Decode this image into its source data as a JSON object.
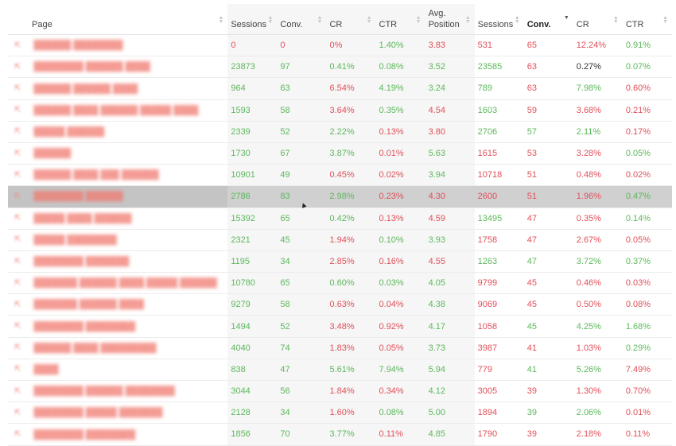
{
  "headers": {
    "page": "Page",
    "sessions_a": "Sessions",
    "conv_a": "Conv.",
    "cr_a": "CR",
    "ctr_a": "CTR",
    "avg_position": "Avg.\nPosition",
    "sessions_b": "Sessions",
    "conv_b": "Conv.",
    "cr_b": "CR",
    "ctr_b": "CTR"
  },
  "icons": {
    "page_icon": "external-link-icon",
    "sort_icon": "sort-arrows-icon",
    "cursor": "mouse-pointer-icon"
  },
  "colors": {
    "positive": "#5cb85c",
    "negative": "#e0505a",
    "link": "#f07a70",
    "highlight_row": "#d0d0d0"
  },
  "rows": [
    {
      "page": "██████ ████████",
      "highlight": false,
      "cells": [
        [
          "0",
          "red"
        ],
        [
          "0",
          "red"
        ],
        [
          "0%",
          "red"
        ],
        [
          "1.40%",
          "green"
        ],
        [
          "3.83",
          "red"
        ],
        [
          "531",
          "red"
        ],
        [
          "65",
          "red"
        ],
        [
          "12.24%",
          "red"
        ],
        [
          "0.91%",
          "green"
        ]
      ]
    },
    {
      "page": "████████ ██████ ████",
      "highlight": false,
      "cells": [
        [
          "23873",
          "green"
        ],
        [
          "97",
          "green"
        ],
        [
          "0.41%",
          "green"
        ],
        [
          "0.08%",
          "green"
        ],
        [
          "3.52",
          "green"
        ],
        [
          "23585",
          "green"
        ],
        [
          "63",
          "red"
        ],
        [
          "0.27%",
          "dark"
        ],
        [
          "0.07%",
          "green"
        ]
      ]
    },
    {
      "page": "██████ ██████ ████",
      "highlight": false,
      "cells": [
        [
          "964",
          "green"
        ],
        [
          "63",
          "green"
        ],
        [
          "6.54%",
          "red"
        ],
        [
          "4.19%",
          "green"
        ],
        [
          "3.24",
          "green"
        ],
        [
          "789",
          "green"
        ],
        [
          "63",
          "red"
        ],
        [
          "7.98%",
          "green"
        ],
        [
          "0.60%",
          "red"
        ]
      ]
    },
    {
      "page": "██████ ████ ██████ █████ ████",
      "highlight": false,
      "cells": [
        [
          "1593",
          "green"
        ],
        [
          "58",
          "green"
        ],
        [
          "3.64%",
          "red"
        ],
        [
          "0.35%",
          "green"
        ],
        [
          "4.54",
          "red"
        ],
        [
          "1603",
          "green"
        ],
        [
          "59",
          "red"
        ],
        [
          "3.68%",
          "red"
        ],
        [
          "0.21%",
          "red"
        ]
      ]
    },
    {
      "page": "█████ ██████",
      "highlight": false,
      "cells": [
        [
          "2339",
          "green"
        ],
        [
          "52",
          "green"
        ],
        [
          "2.22%",
          "green"
        ],
        [
          "0.13%",
          "red"
        ],
        [
          "3.80",
          "red"
        ],
        [
          "2706",
          "green"
        ],
        [
          "57",
          "green"
        ],
        [
          "2.11%",
          "green"
        ],
        [
          "0.17%",
          "red"
        ]
      ]
    },
    {
      "page": "██████",
      "highlight": false,
      "cells": [
        [
          "1730",
          "green"
        ],
        [
          "67",
          "green"
        ],
        [
          "3.87%",
          "green"
        ],
        [
          "0.01%",
          "red"
        ],
        [
          "5.63",
          "green"
        ],
        [
          "1615",
          "red"
        ],
        [
          "53",
          "red"
        ],
        [
          "3.28%",
          "red"
        ],
        [
          "0.05%",
          "green"
        ]
      ]
    },
    {
      "page": "██████ ████ ███ ██████",
      "highlight": false,
      "cells": [
        [
          "10901",
          "green"
        ],
        [
          "49",
          "green"
        ],
        [
          "0.45%",
          "red"
        ],
        [
          "0.02%",
          "red"
        ],
        [
          "3.94",
          "green"
        ],
        [
          "10718",
          "red"
        ],
        [
          "51",
          "red"
        ],
        [
          "0.48%",
          "red"
        ],
        [
          "0.02%",
          "red"
        ]
      ]
    },
    {
      "page": "████████ ██████",
      "highlight": true,
      "cells": [
        [
          "2786",
          "green"
        ],
        [
          "83",
          "green"
        ],
        [
          "2.98%",
          "green"
        ],
        [
          "0.23%",
          "red"
        ],
        [
          "4.30",
          "red"
        ],
        [
          "2600",
          "red"
        ],
        [
          "51",
          "red"
        ],
        [
          "1.96%",
          "red"
        ],
        [
          "0.47%",
          "green"
        ]
      ]
    },
    {
      "page": "█████ ████ ██████",
      "highlight": false,
      "cells": [
        [
          "15392",
          "green"
        ],
        [
          "65",
          "green"
        ],
        [
          "0.42%",
          "green"
        ],
        [
          "0.13%",
          "red"
        ],
        [
          "4.59",
          "red"
        ],
        [
          "13495",
          "green"
        ],
        [
          "47",
          "red"
        ],
        [
          "0.35%",
          "red"
        ],
        [
          "0.14%",
          "green"
        ]
      ]
    },
    {
      "page": "█████ ████████",
      "highlight": false,
      "cells": [
        [
          "2321",
          "green"
        ],
        [
          "45",
          "green"
        ],
        [
          "1.94%",
          "red"
        ],
        [
          "0.10%",
          "green"
        ],
        [
          "3.93",
          "green"
        ],
        [
          "1758",
          "red"
        ],
        [
          "47",
          "red"
        ],
        [
          "2.67%",
          "red"
        ],
        [
          "0.05%",
          "red"
        ]
      ]
    },
    {
      "page": "████████ ███████",
      "highlight": false,
      "cells": [
        [
          "1195",
          "green"
        ],
        [
          "34",
          "green"
        ],
        [
          "2.85%",
          "red"
        ],
        [
          "0.16%",
          "red"
        ],
        [
          "4.55",
          "red"
        ],
        [
          "1263",
          "green"
        ],
        [
          "47",
          "green"
        ],
        [
          "3.72%",
          "green"
        ],
        [
          "0.37%",
          "green"
        ]
      ]
    },
    {
      "page": "███████ ██████ ████ █████ ██████",
      "highlight": false,
      "cells": [
        [
          "10780",
          "green"
        ],
        [
          "65",
          "green"
        ],
        [
          "0.60%",
          "green"
        ],
        [
          "0.03%",
          "green"
        ],
        [
          "4.05",
          "green"
        ],
        [
          "9799",
          "red"
        ],
        [
          "45",
          "red"
        ],
        [
          "0.46%",
          "red"
        ],
        [
          "0.03%",
          "red"
        ]
      ]
    },
    {
      "page": "███████ ██████ ████",
      "highlight": false,
      "cells": [
        [
          "9279",
          "green"
        ],
        [
          "58",
          "green"
        ],
        [
          "0.63%",
          "red"
        ],
        [
          "0.04%",
          "red"
        ],
        [
          "4.38",
          "green"
        ],
        [
          "9069",
          "red"
        ],
        [
          "45",
          "red"
        ],
        [
          "0.50%",
          "red"
        ],
        [
          "0.08%",
          "red"
        ]
      ]
    },
    {
      "page": "████████ ████████",
      "highlight": false,
      "cells": [
        [
          "1494",
          "green"
        ],
        [
          "52",
          "green"
        ],
        [
          "3.48%",
          "red"
        ],
        [
          "0.92%",
          "red"
        ],
        [
          "4.17",
          "green"
        ],
        [
          "1058",
          "red"
        ],
        [
          "45",
          "green"
        ],
        [
          "4.25%",
          "green"
        ],
        [
          "1.68%",
          "green"
        ]
      ]
    },
    {
      "page": "██████ ████ █████████",
      "highlight": false,
      "cells": [
        [
          "4040",
          "green"
        ],
        [
          "74",
          "green"
        ],
        [
          "1.83%",
          "red"
        ],
        [
          "0.05%",
          "red"
        ],
        [
          "3.73",
          "green"
        ],
        [
          "3987",
          "red"
        ],
        [
          "41",
          "red"
        ],
        [
          "1.03%",
          "red"
        ],
        [
          "0.29%",
          "green"
        ]
      ]
    },
    {
      "page": "████",
      "highlight": false,
      "cells": [
        [
          "838",
          "green"
        ],
        [
          "47",
          "green"
        ],
        [
          "5.61%",
          "green"
        ],
        [
          "7.94%",
          "green"
        ],
        [
          "5.94",
          "green"
        ],
        [
          "779",
          "red"
        ],
        [
          "41",
          "green"
        ],
        [
          "5.26%",
          "green"
        ],
        [
          "7.49%",
          "red"
        ]
      ]
    },
    {
      "page": "████████ ██████ ████████",
      "highlight": false,
      "cells": [
        [
          "3044",
          "green"
        ],
        [
          "56",
          "green"
        ],
        [
          "1.84%",
          "red"
        ],
        [
          "0.34%",
          "red"
        ],
        [
          "4.12",
          "green"
        ],
        [
          "3005",
          "red"
        ],
        [
          "39",
          "red"
        ],
        [
          "1.30%",
          "red"
        ],
        [
          "0.70%",
          "red"
        ]
      ]
    },
    {
      "page": "████████ █████ ███████",
      "highlight": false,
      "cells": [
        [
          "2128",
          "green"
        ],
        [
          "34",
          "green"
        ],
        [
          "1.60%",
          "red"
        ],
        [
          "0.08%",
          "green"
        ],
        [
          "5.00",
          "green"
        ],
        [
          "1894",
          "red"
        ],
        [
          "39",
          "green"
        ],
        [
          "2.06%",
          "green"
        ],
        [
          "0.01%",
          "red"
        ]
      ]
    },
    {
      "page": "████████ ████████",
      "highlight": false,
      "cells": [
        [
          "1856",
          "green"
        ],
        [
          "70",
          "green"
        ],
        [
          "3.77%",
          "green"
        ],
        [
          "0.11%",
          "red"
        ],
        [
          "4.85",
          "green"
        ],
        [
          "1790",
          "red"
        ],
        [
          "39",
          "red"
        ],
        [
          "2.18%",
          "red"
        ],
        [
          "0.11%",
          "red"
        ]
      ]
    }
  ]
}
